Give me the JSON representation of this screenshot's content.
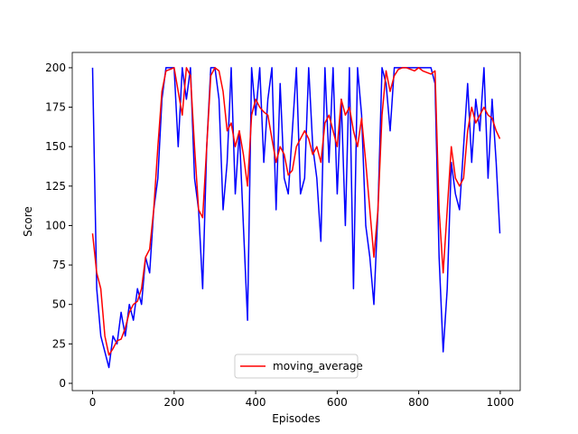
{
  "chart_data": {
    "type": "line",
    "x_label": "Episodes",
    "y_label": "Score",
    "x": [
      0,
      10,
      20,
      30,
      40,
      50,
      60,
      70,
      80,
      90,
      100,
      110,
      120,
      130,
      140,
      150,
      160,
      170,
      180,
      190,
      200,
      210,
      220,
      230,
      240,
      250,
      260,
      270,
      280,
      290,
      300,
      310,
      320,
      330,
      340,
      350,
      360,
      370,
      380,
      390,
      400,
      410,
      420,
      430,
      440,
      450,
      460,
      470,
      480,
      490,
      500,
      510,
      520,
      530,
      540,
      550,
      560,
      570,
      580,
      590,
      600,
      610,
      620,
      630,
      640,
      650,
      660,
      670,
      680,
      690,
      700,
      710,
      720,
      730,
      740,
      750,
      760,
      770,
      780,
      790,
      800,
      810,
      820,
      830,
      840,
      850,
      860,
      870,
      880,
      890,
      900,
      910,
      920,
      930,
      940,
      950,
      960,
      970,
      980,
      990,
      999
    ],
    "series": [
      {
        "color": "#0000ff",
        "values": [
          200,
          60,
          30,
          20,
          10,
          30,
          25,
          45,
          30,
          50,
          40,
          60,
          50,
          80,
          70,
          110,
          130,
          180,
          200,
          200,
          200,
          150,
          200,
          180,
          200,
          130,
          110,
          60,
          150,
          200,
          200,
          180,
          110,
          140,
          200,
          120,
          160,
          100,
          40,
          200,
          170,
          200,
          140,
          180,
          200,
          110,
          190,
          130,
          120,
          160,
          200,
          120,
          130,
          200,
          150,
          130,
          90,
          200,
          140,
          200,
          120,
          180,
          100,
          200,
          60,
          200,
          170,
          100,
          80,
          50,
          110,
          200,
          190,
          160,
          200,
          200,
          200,
          200,
          200,
          200,
          200,
          200,
          200,
          200,
          190,
          80,
          20,
          60,
          140,
          120,
          110,
          150,
          190,
          140,
          180,
          160,
          200,
          130,
          180,
          140,
          95
        ]
      },
      {
        "name": "moving_average",
        "color": "#ff0000",
        "values": [
          95,
          70,
          60,
          30,
          18,
          22,
          27,
          28,
          35,
          45,
          50,
          52,
          60,
          80,
          85,
          110,
          150,
          185,
          198,
          199,
          200,
          185,
          170,
          200,
          195,
          150,
          110,
          105,
          150,
          195,
          200,
          198,
          185,
          160,
          165,
          150,
          160,
          145,
          125,
          170,
          180,
          175,
          172,
          170,
          155,
          140,
          150,
          145,
          132,
          135,
          150,
          155,
          160,
          155,
          145,
          150,
          140,
          165,
          170,
          160,
          150,
          180,
          170,
          175,
          160,
          150,
          168,
          140,
          110,
          80,
          110,
          170,
          198,
          185,
          195,
          199,
          200,
          200,
          199,
          198,
          200,
          198,
          197,
          196,
          198,
          110,
          70,
          110,
          150,
          130,
          125,
          130,
          160,
          175,
          165,
          170,
          175,
          170,
          168,
          160,
          155
        ]
      }
    ],
    "xlim": [
      -49.95,
      1048.95
    ],
    "ylim": [
      -4.6,
      209.7
    ],
    "xticks": [
      0,
      200,
      400,
      600,
      800,
      1000
    ],
    "yticks": [
      0,
      25,
      50,
      75,
      100,
      125,
      150,
      175,
      200
    ],
    "legend": "lower center"
  }
}
